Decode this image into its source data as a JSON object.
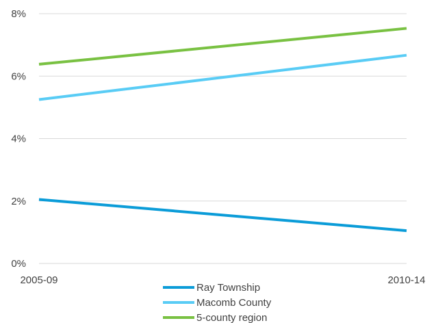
{
  "chart_data": {
    "type": "line",
    "categories": [
      "2005-09",
      "2010-14"
    ],
    "y_tick_labels": [
      "0%",
      "2%",
      "4%",
      "6%",
      "8%"
    ],
    "y_ticks": [
      0,
      2,
      4,
      6,
      8
    ],
    "ylim": [
      0,
      8
    ],
    "grid": true,
    "legend_position": "bottom",
    "series": [
      {
        "name": "Ray Township",
        "values": [
          2.05,
          1.05
        ],
        "color": "#0b9cd8"
      },
      {
        "name": "Macomb County",
        "values": [
          5.25,
          6.67
        ],
        "color": "#59ccf5"
      },
      {
        "name": "5-county region",
        "values": [
          6.38,
          7.53
        ],
        "color": "#79c142"
      }
    ],
    "gridline_color": "#d9d9d9"
  }
}
